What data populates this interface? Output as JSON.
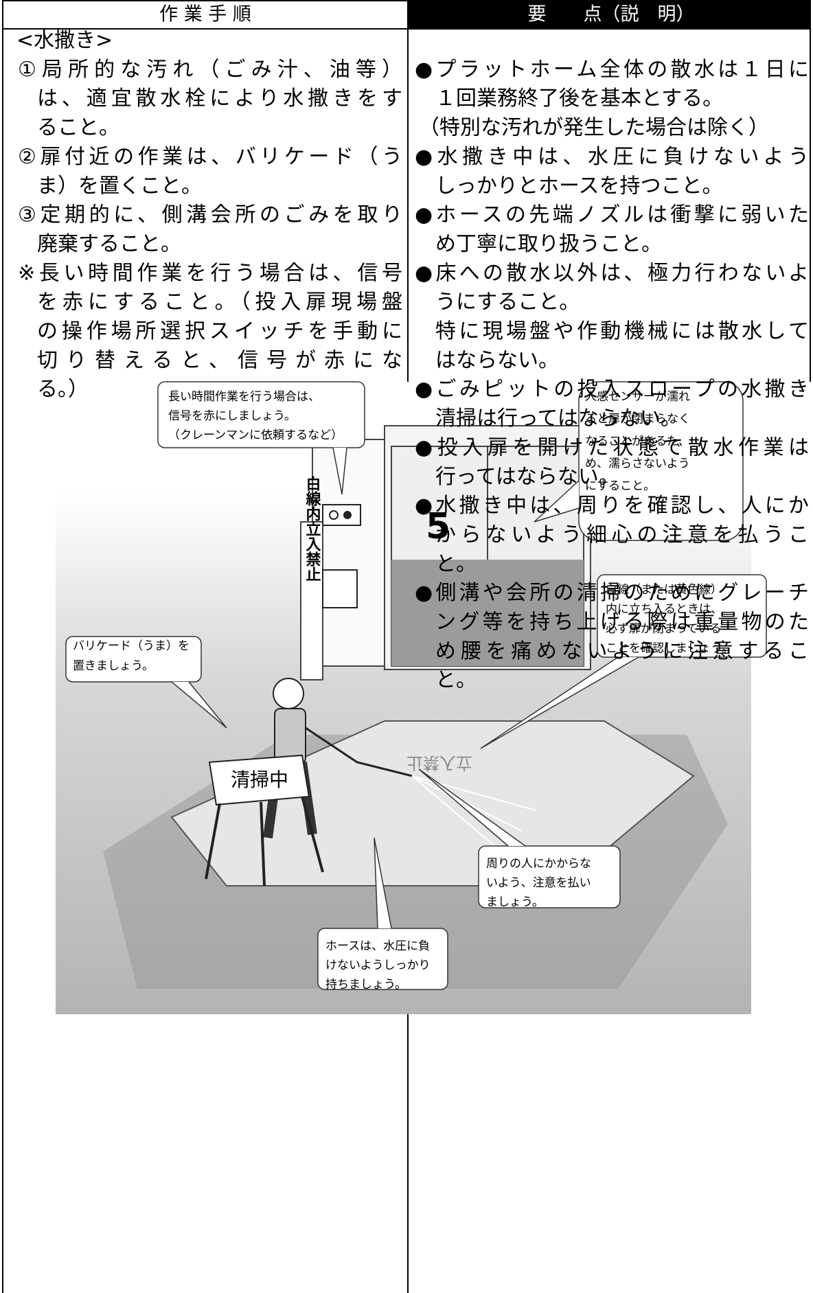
{
  "header": {
    "procedure": "作 業 手 順",
    "points": "要　　点（説　明）"
  },
  "left": {
    "heading": "<水撒き>",
    "items": [
      {
        "lines": [
          "①局所的な汚れ（ごみ汁、油等）",
          "は、適宜散水栓により水撒きをす",
          "ること。"
        ]
      },
      {
        "lines": [
          "②扉付近の作業は、バリケード（う",
          "ま）を置くこと。"
        ]
      },
      {
        "lines": [
          "③定期的に、側溝会所のごみを取り",
          "廃棄すること。"
        ]
      },
      {
        "lines": [
          "※長い時間作業を行う場合は、信号",
          "を赤にすること。（投入扉現場盤",
          "の操作場所選択スイッチを手動に",
          "切り替えると、信号が赤にな",
          "る。）"
        ]
      }
    ]
  },
  "right": {
    "items": [
      {
        "paragraphs": [
          [
            "●プラットホーム全体の散水は１日に",
            "１回業務終了後を基本とする。"
          ]
        ]
      },
      {
        "note": "（特別な汚れが発生した場合は除く）"
      },
      {
        "paragraphs": [
          [
            "●水撒き中は、水圧に負けないよう",
            "しっかりとホースを持つこと。"
          ]
        ]
      },
      {
        "paragraphs": [
          [
            "●ホースの先端ノズルは衝撃に弱いた",
            "め丁寧に取り扱うこと。"
          ]
        ]
      },
      {
        "paragraphs": [
          [
            "●床への散水以外は、極力行わないよ",
            "うにすること。"
          ],
          [
            "特に現場盤や作動機械には散水して",
            "はならない。"
          ]
        ]
      },
      {
        "paragraphs": [
          [
            "●ごみピットの投入スロープの水撒き",
            "清掃は行ってはならない。"
          ]
        ]
      },
      {
        "paragraphs": [
          [
            "●投入扉を開けた状態で散水作業は",
            "行ってはならない。"
          ]
        ]
      },
      {
        "paragraphs": [
          [
            "●水撒き中は、周りを確認し、人にか",
            "からないよう細心の注意を払うこ",
            "と。"
          ]
        ]
      },
      {
        "paragraphs": [
          [
            "●側溝や会所の清掃のためにグレーチ",
            "ング等を持ち上げる際は重量物のた",
            "め腰を痛めないように注意するこ",
            "と。"
          ]
        ]
      }
    ]
  },
  "illustration": {
    "callouts": [
      {
        "lines": [
          "長い時間作業を行う場合は、",
          "信号を赤にしましょう。",
          "（クレーンマンに依頼するなど）"
        ]
      },
      {
        "lines": [
          "人感センサーが濡れ",
          "ると扉が閉まらなく",
          "なることがあるた",
          "め、濡らさないよう",
          "にすること。"
        ]
      },
      {
        "lines": [
          "白線（または黄色線）",
          "内に立ち入るときは、",
          "必ず扉が閉まっている",
          "ことを確認しましょう。"
        ]
      },
      {
        "lines": [
          "バリケード（うま）を",
          "置きましょう。"
        ]
      },
      {
        "lines": [
          "周りの人にかからな",
          "いよう、注意を払い",
          "ましょう。"
        ]
      },
      {
        "lines": [
          "ホースは、水圧に負",
          "けないようしっかり",
          "持ちましょう。"
        ]
      }
    ],
    "labels": {
      "pole": "白線内立入禁止",
      "door": "5",
      "sign": "清掃中",
      "floor": "立入禁止"
    }
  }
}
